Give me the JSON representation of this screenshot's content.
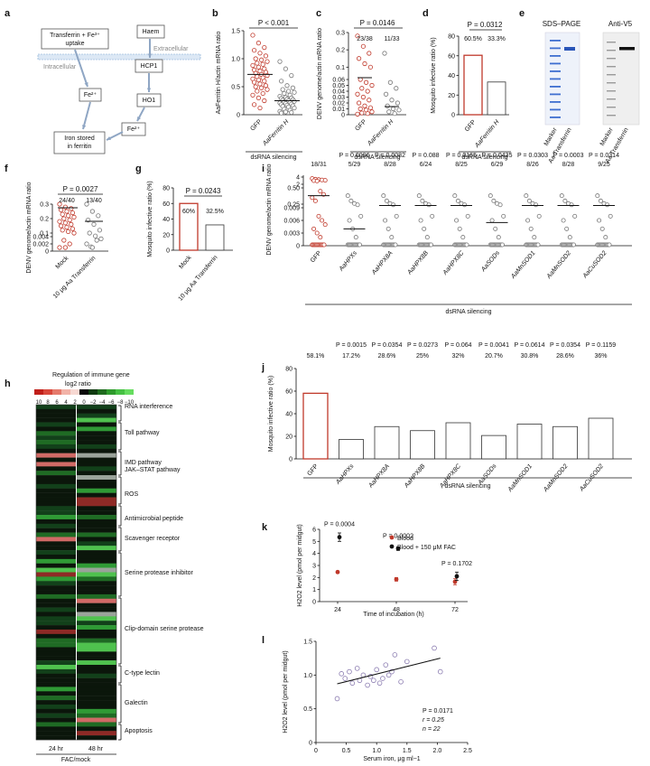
{
  "panel_labels": [
    "a",
    "b",
    "c",
    "d",
    "e",
    "f",
    "g",
    "h",
    "i",
    "j",
    "k",
    "l"
  ],
  "panel_a": {
    "uptake": "Transferrin + Fe3+ uptake",
    "haem": "Haem",
    "extracellular": "Extracellular",
    "intracellular": "Intracellular",
    "hcp1": "HCP1",
    "fe2a": "Fe2+",
    "ho1": "HO1",
    "fe2b": "Fe2+",
    "stored": "Iron stored in ferritin"
  },
  "panel_e": {
    "sds_title": "SDS–PAGE",
    "v5_title": "Anti-V5",
    "lane_labels": [
      "Marker",
      "Aa Transferrin",
      "Marker",
      "Aa Transferrin"
    ]
  },
  "panel_h": {
    "title": "Regulation of immune gene",
    "subtitle": "log2 ratio",
    "scale_ticks": [
      "10",
      "8",
      "6",
      "4",
      "2",
      "0",
      "−2",
      "−4",
      "−6",
      "−8",
      "−10"
    ],
    "categories": [
      "RNA interference",
      "Toll pathway",
      "IMD pathway",
      "JAK–STAT pathway",
      "ROS",
      "Antimicrobial peptide",
      "Scavenger receptor",
      "Serine protease inhibitor",
      "Clip-domain serine protease",
      "C-type lectin",
      "Galectin",
      "Apoptosis"
    ],
    "columns": [
      "24 hr",
      "48 hr"
    ],
    "footer": "FAC/mock"
  },
  "chart_data": [
    {
      "panel": "b",
      "type": "scatter",
      "ylabel": "AaFerritin H/actin mRNA ratio",
      "categories": [
        "GFP",
        "AaFerritin H"
      ],
      "ylim": [
        0,
        1.5
      ],
      "yticks": [
        "0",
        "0.5",
        "1.0",
        "1.5"
      ],
      "pvalue": "P < 0.001",
      "group_label": "dsRNA silencing",
      "medians": [
        0.72,
        0.25
      ],
      "series": [
        {
          "name": "GFP",
          "values": [
            1.42,
            1.28,
            1.2,
            1.15,
            1.1,
            1.05,
            1.0,
            0.98,
            0.95,
            0.92,
            0.9,
            0.88,
            0.85,
            0.82,
            0.8,
            0.78,
            0.76,
            0.74,
            0.72,
            0.7,
            0.68,
            0.66,
            0.64,
            0.62,
            0.6,
            0.58,
            0.55,
            0.52,
            0.5,
            0.48,
            0.45,
            0.42,
            0.38,
            0.35,
            0.3,
            0.25,
            0.18,
            0.12
          ]
        },
        {
          "name": "AaFerritin H",
          "values": [
            0.95,
            0.82,
            0.7,
            0.6,
            0.52,
            0.48,
            0.45,
            0.42,
            0.4,
            0.38,
            0.35,
            0.33,
            0.31,
            0.3,
            0.29,
            0.28,
            0.27,
            0.26,
            0.25,
            0.24,
            0.23,
            0.22,
            0.21,
            0.2,
            0.19,
            0.18,
            0.17,
            0.16,
            0.15,
            0.14,
            0.12,
            0.1,
            0.08,
            0.06,
            0.05,
            0.04,
            0.03
          ]
        }
      ]
    },
    {
      "panel": "c",
      "type": "scatter",
      "ylabel": "DENV genome/actin mRNA ratio",
      "categories": [
        "GFP",
        "AaFerritin H"
      ],
      "yticks": [
        "0",
        "0.01",
        "0.02",
        "0.03",
        "0.04",
        "0.05",
        "0.06",
        "0.1",
        "0.2",
        "0.3"
      ],
      "pvalue": "P = 0.0146",
      "counts": [
        "23/38",
        "11/33"
      ],
      "group_label": "dsRNA silencing",
      "series": [
        {
          "name": "GFP",
          "values": [
            0.28,
            0.22,
            0.18,
            0.15,
            0.12,
            0.1,
            0.06,
            0.055,
            0.05,
            0.045,
            0.04,
            0.035,
            0.03,
            0.025,
            0.02,
            0.015,
            0.012,
            0.01,
            0.008,
            0.005,
            0.003,
            0.002,
            0.001
          ]
        },
        {
          "name": "AaFerritin H",
          "values": [
            0.18,
            0.055,
            0.045,
            0.035,
            0.025,
            0.02,
            0.015,
            0.01,
            0.008,
            0.005,
            0.002
          ]
        }
      ]
    },
    {
      "panel": "d",
      "type": "bar",
      "ylabel": "Mosquito infective ratio (%)",
      "categories": [
        "GFP",
        "AaFerritin H"
      ],
      "values": [
        60.5,
        33.3
      ],
      "labels": [
        "60.5%",
        "33.3%"
      ],
      "ylim": [
        0,
        80
      ],
      "yticks": [
        "0",
        "20",
        "40",
        "60",
        "80"
      ],
      "pvalue": "P = 0.0312",
      "group_label": "dsRNA silencing"
    },
    {
      "panel": "f",
      "type": "scatter",
      "ylabel": "DENV genome/actin mRNA ratio",
      "categories": [
        "Mock",
        "10 μg Aa Transferrin"
      ],
      "yticks": [
        "0",
        "0.002",
        "0.004",
        "0.1",
        "0.2",
        "0.3"
      ],
      "pvalue": "P = 0.0027",
      "counts": [
        "24/40",
        "13/40"
      ],
      "series": [
        {
          "name": "Mock",
          "values": [
            0.3,
            0.28,
            0.27,
            0.26,
            0.25,
            0.24,
            0.23,
            0.22,
            0.21,
            0.2,
            0.19,
            0.18,
            0.17,
            0.16,
            0.15,
            0.14,
            0.13,
            0.12,
            0.11,
            0.1,
            0.003,
            0.002,
            0.001,
            0.001
          ]
        },
        {
          "name": "10 μg Aa Transferrin",
          "values": [
            0.3,
            0.25,
            0.22,
            0.19,
            0.16,
            0.12,
            0.1,
            0.08,
            0.06,
            0.005,
            0.003,
            0.002,
            0.001
          ]
        }
      ]
    },
    {
      "panel": "g",
      "type": "bar",
      "ylabel": "Mosquito infective ratio (%)",
      "categories": [
        "Mock",
        "10 μg Aa Transferrin"
      ],
      "values": [
        60,
        32.5
      ],
      "labels": [
        "60%",
        "32.5%"
      ],
      "ylim": [
        0,
        80
      ],
      "yticks": [
        "0",
        "20",
        "40",
        "60",
        "80"
      ],
      "pvalue": "P = 0.0243"
    },
    {
      "panel": "i",
      "type": "scatter",
      "ylabel": "DENV genome/actin mRNA ratio",
      "categories": [
        "GFP",
        "AaHPXs",
        "AaHPX8A",
        "AaHPX8B",
        "AaHPX8C",
        "AaSODs",
        "AaMnSOD1",
        "AaMnSOD2",
        "AaCuSOD2"
      ],
      "yticks": [
        "0",
        "0.003",
        "0.006",
        "0.009",
        "0.25",
        "0.50",
        "2",
        "4"
      ],
      "counts": [
        "18/31",
        "5/29",
        "8/28",
        "6/24",
        "8/25",
        "6/29",
        "8/26",
        "8/28",
        "9/25"
      ],
      "pvalues": [
        "",
        "P = 0.0006",
        "P = 0.0082",
        "P = 0.088",
        "P = 0.0165",
        "P = 0.0435",
        "P = 0.0303",
        "P = 0.0003",
        "P = 0.0314"
      ],
      "group_label": "dsRNA silencing"
    },
    {
      "panel": "j",
      "type": "bar",
      "ylabel": "Mosquito infective ratio (%)",
      "categories": [
        "GFP",
        "AaHPXs",
        "AaHPX8A",
        "AaHPX8B",
        "AaHPX8C",
        "AaSODs",
        "AaMnSOD1",
        "AaMnSOD2",
        "AaCuSOD2"
      ],
      "values": [
        58.1,
        17.2,
        28.6,
        25,
        32,
        20.7,
        30.8,
        28.6,
        36
      ],
      "labels": [
        "58.1%",
        "17.2%",
        "28.6%",
        "25%",
        "32%",
        "20.7%",
        "30.8%",
        "28.6%",
        "36%"
      ],
      "pvalues": [
        "",
        "P = 0.0015",
        "P = 0.0354",
        "P = 0.0273",
        "P = 0.064",
        "P = 0.0041",
        "P = 0.0614",
        "P = 0.0354",
        "P = 0.1159"
      ],
      "ylim": [
        0,
        80
      ],
      "yticks": [
        "0",
        "20",
        "40",
        "60",
        "80"
      ],
      "group_label": "dsRNA silencing"
    },
    {
      "panel": "k",
      "type": "scatter",
      "ylabel": "H2O2 level (pmol per midgut)",
      "xlabel": "Time of incubation (h)",
      "x": [
        24,
        48,
        72
      ],
      "xticks": [
        "24",
        "48",
        "72"
      ],
      "ylim": [
        0,
        6
      ],
      "yticks": [
        "0",
        "1",
        "2",
        "3",
        "4",
        "5",
        "6"
      ],
      "pvalues": [
        "P = 0.0004",
        "P = 0.0002",
        "P = 0.1702"
      ],
      "legend": "top-right",
      "series": [
        {
          "name": "Blood",
          "values": [
            2.45,
            1.85,
            1.65
          ],
          "errors": [
            0.1,
            0.15,
            0.25
          ]
        },
        {
          "name": "Blood + 150 μM FAC",
          "values": [
            5.35,
            4.4,
            2.1
          ],
          "errors": [
            0.35,
            0.15,
            0.35
          ]
        }
      ]
    },
    {
      "panel": "l",
      "type": "scatter",
      "ylabel": "H2O2 level (pmol per midgut)",
      "xlabel": "Serum iron, μg ml−1",
      "xlim": [
        0,
        2.5
      ],
      "xticks": [
        "0",
        "0.5",
        "1.0",
        "1.5",
        "2.0",
        "2.5"
      ],
      "ylim": [
        0,
        1.5
      ],
      "yticks": [
        "0",
        "0.5",
        "1.0",
        "1.5"
      ],
      "stats": [
        "P = 0.0171",
        "r = 0.25",
        "n = 22"
      ],
      "x": [
        0.35,
        0.42,
        0.48,
        0.55,
        0.6,
        0.68,
        0.72,
        0.78,
        0.85,
        0.9,
        0.95,
        1.0,
        1.05,
        1.1,
        1.15,
        1.2,
        1.25,
        1.3,
        1.4,
        1.5,
        1.95,
        2.05
      ],
      "y": [
        0.65,
        1.02,
        0.95,
        1.05,
        0.88,
        1.1,
        0.92,
        1.0,
        0.85,
        0.98,
        0.92,
        1.08,
        0.88,
        0.95,
        1.15,
        1.0,
        1.05,
        1.3,
        0.9,
        1.2,
        1.4,
        1.05
      ],
      "fit_line": {
        "x": [
          0.35,
          2.05
        ],
        "y": [
          0.87,
          1.25
        ]
      }
    }
  ]
}
